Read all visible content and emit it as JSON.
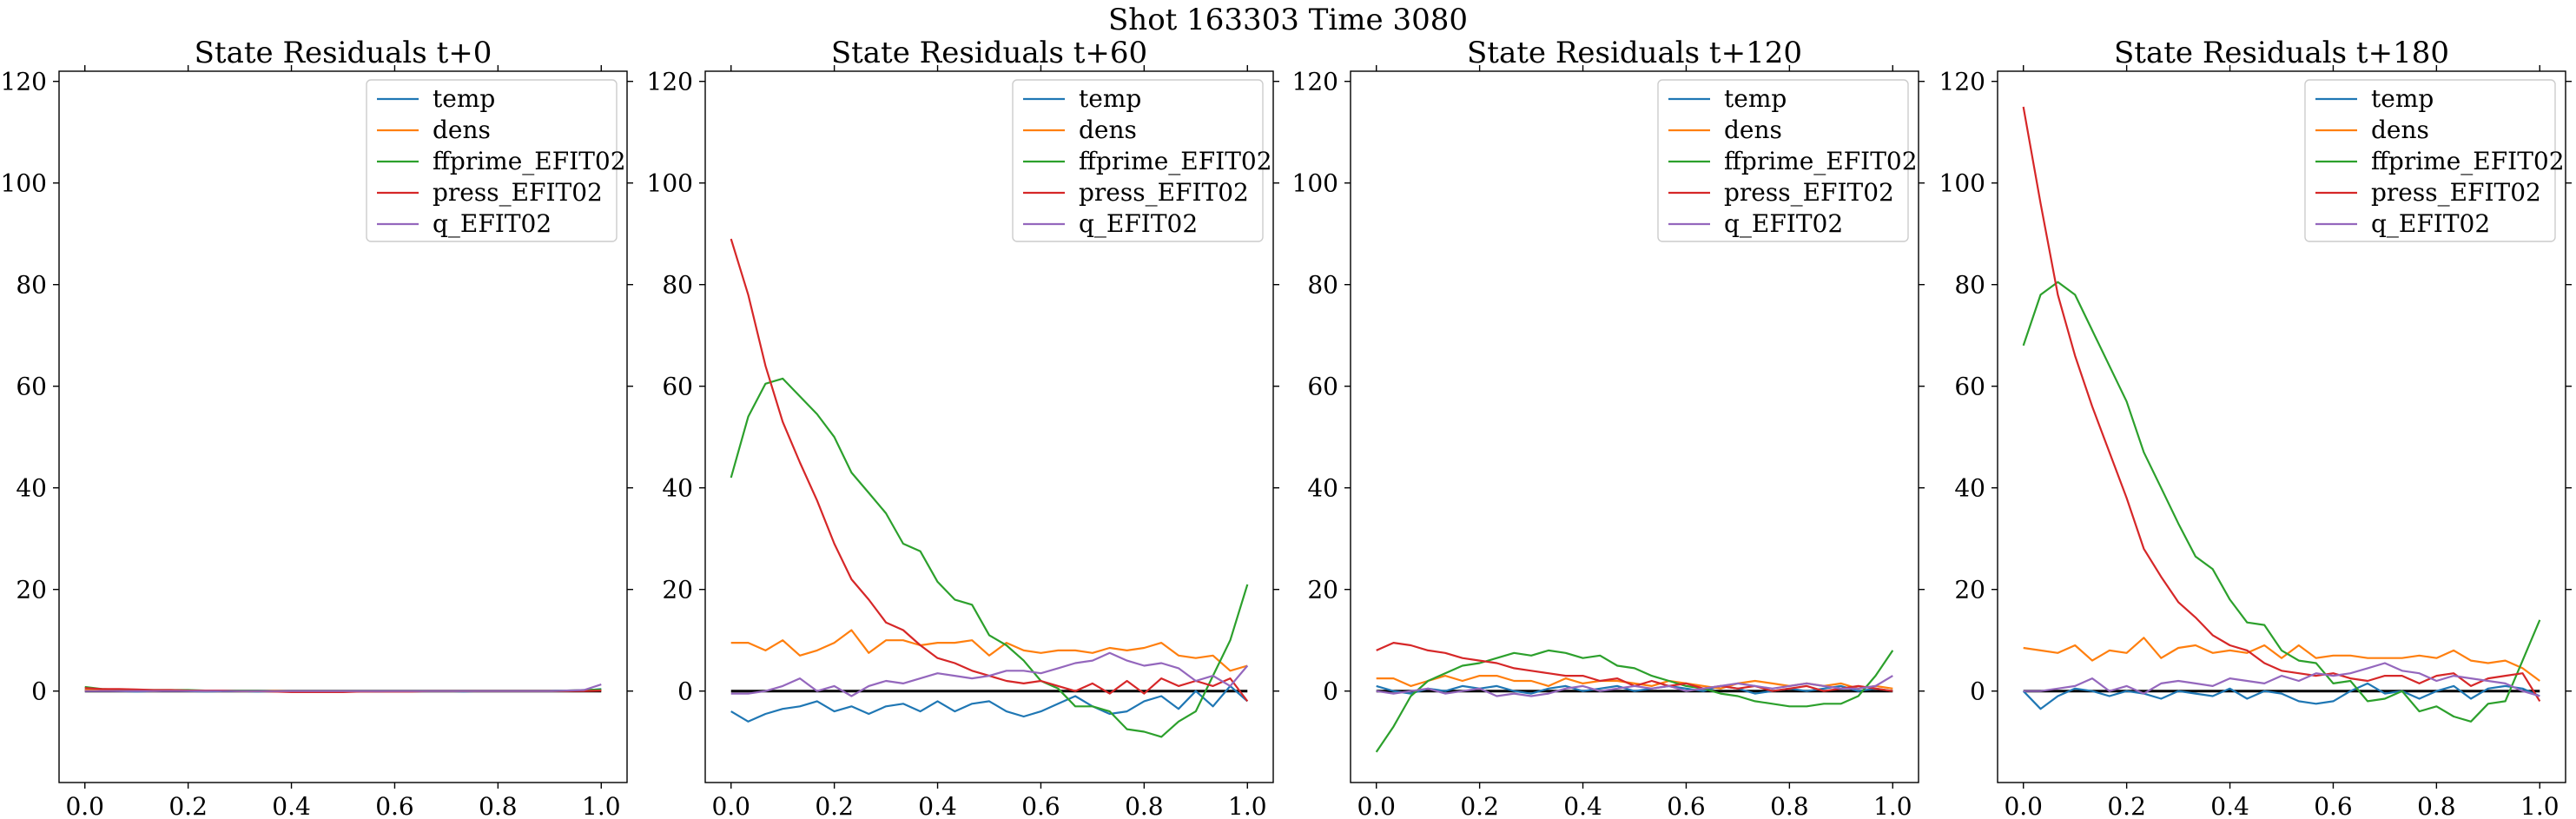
{
  "figure": {
    "title": "Shot 163303   Time 3080"
  },
  "colors": {
    "temp": "#1f77b4",
    "dens": "#ff7f0e",
    "ffprime_EFIT02": "#2ca02c",
    "press_EFIT02": "#d62728",
    "q_EFIT02": "#9467bd",
    "zero_line": "#000000"
  },
  "chart_data": [
    {
      "type": "line",
      "title": "State Residuals t+0",
      "xlabel": "",
      "ylabel": "",
      "xlim": [
        -0.05,
        1.05
      ],
      "ylim": [
        -18,
        122
      ],
      "xticks": [
        0.0,
        0.2,
        0.4,
        0.6,
        0.8,
        1.0
      ],
      "xtick_labels": [
        "0.0",
        "0.2",
        "0.4",
        "0.6",
        "0.8",
        "1.0"
      ],
      "yticks": [
        0,
        20,
        40,
        60,
        80,
        100,
        120
      ],
      "ytick_labels": [
        "0",
        "20",
        "40",
        "60",
        "80",
        "100",
        "120"
      ],
      "legend": "top-right",
      "zero_line": true,
      "x": [
        0.0,
        0.0333,
        0.0667,
        0.1,
        0.1333,
        0.1667,
        0.2,
        0.2333,
        0.2667,
        0.3,
        0.3333,
        0.3667,
        0.4,
        0.4333,
        0.4667,
        0.5,
        0.5333,
        0.5667,
        0.6,
        0.6333,
        0.6667,
        0.7,
        0.7333,
        0.7667,
        0.8,
        0.8333,
        0.8667,
        0.9,
        0.9333,
        0.9667,
        1.0
      ],
      "series": [
        {
          "name": "temp",
          "values": [
            0.3,
            0.1,
            0.0,
            -0.1,
            0.0,
            0.1,
            0.0,
            -0.1,
            0.0,
            0.0,
            -0.1,
            0.0,
            0.0,
            -0.1,
            -0.1,
            0.0,
            0.0,
            -0.1,
            0.0,
            0.0,
            0.0,
            0.0,
            -0.1,
            0.0,
            0.0,
            0.0,
            0.0,
            0.0,
            0.1,
            0.1,
            0.4
          ]
        },
        {
          "name": "dens",
          "values": [
            0.2,
            0.1,
            0.2,
            0.1,
            0.0,
            0.1,
            0.1,
            0.0,
            0.1,
            0.0,
            0.0,
            0.1,
            0.0,
            0.0,
            0.0,
            0.0,
            0.0,
            0.0,
            0.0,
            0.0,
            0.0,
            0.0,
            0.0,
            0.0,
            0.0,
            0.0,
            0.0,
            0.0,
            0.0,
            0.1,
            0.2
          ]
        },
        {
          "name": "ffprime_EFIT02",
          "values": [
            0.8,
            0.4,
            0.3,
            0.2,
            0.2,
            0.2,
            0.2,
            0.1,
            0.1,
            0.1,
            0.1,
            0.0,
            0.0,
            0.0,
            0.0,
            0.0,
            0.0,
            0.0,
            0.0,
            0.0,
            0.0,
            0.0,
            0.0,
            0.0,
            0.0,
            0.0,
            0.0,
            0.0,
            0.1,
            0.2,
            0.3
          ]
        },
        {
          "name": "press_EFIT02",
          "values": [
            0.6,
            0.4,
            0.4,
            0.3,
            0.2,
            0.2,
            0.1,
            0.1,
            0.1,
            0.0,
            0.0,
            -0.1,
            -0.2,
            -0.2,
            -0.2,
            -0.2,
            -0.1,
            -0.1,
            -0.1,
            -0.1,
            0.0,
            0.0,
            0.0,
            0.0,
            0.0,
            0.0,
            0.0,
            0.0,
            0.0,
            0.0,
            0.1
          ]
        },
        {
          "name": "q_EFIT02",
          "values": [
            0.0,
            0.0,
            0.0,
            0.0,
            0.0,
            0.0,
            0.0,
            0.0,
            0.0,
            0.0,
            0.0,
            0.0,
            0.0,
            0.0,
            0.0,
            0.0,
            0.0,
            0.0,
            0.0,
            0.0,
            0.0,
            0.0,
            0.0,
            0.0,
            0.0,
            0.0,
            0.0,
            0.0,
            0.1,
            0.2,
            1.3
          ]
        }
      ]
    },
    {
      "type": "line",
      "title": "State Residuals t+60",
      "xlabel": "",
      "ylabel": "",
      "xlim": [
        -0.05,
        1.05
      ],
      "ylim": [
        -18,
        122
      ],
      "xticks": [
        0.0,
        0.2,
        0.4,
        0.6,
        0.8,
        1.0
      ],
      "xtick_labels": [
        "0.0",
        "0.2",
        "0.4",
        "0.6",
        "0.8",
        "1.0"
      ],
      "yticks": [
        0,
        20,
        40,
        60,
        80,
        100,
        120
      ],
      "ytick_labels": [
        "0",
        "20",
        "40",
        "60",
        "80",
        "100",
        "120"
      ],
      "legend": "top-right",
      "zero_line": true,
      "x": [
        0.0,
        0.0333,
        0.0667,
        0.1,
        0.1333,
        0.1667,
        0.2,
        0.2333,
        0.2667,
        0.3,
        0.3333,
        0.3667,
        0.4,
        0.4333,
        0.4667,
        0.5,
        0.5333,
        0.5667,
        0.6,
        0.6333,
        0.6667,
        0.7,
        0.7333,
        0.7667,
        0.8,
        0.8333,
        0.8667,
        0.9,
        0.9333,
        0.9667,
        1.0
      ],
      "series": [
        {
          "name": "temp",
          "values": [
            -4,
            -6,
            -4.5,
            -3.5,
            -3,
            -2,
            -4,
            -3,
            -4.5,
            -3,
            -2.5,
            -4,
            -2,
            -4,
            -2.5,
            -2,
            -4,
            -5,
            -4,
            -2.5,
            -1,
            -3,
            -4.5,
            -4,
            -2,
            -1,
            -3.5,
            0,
            -3,
            1,
            -2
          ]
        },
        {
          "name": "dens",
          "values": [
            9.5,
            9.5,
            8,
            10,
            7,
            8,
            9.5,
            12,
            7.5,
            10,
            10,
            9,
            9.5,
            9.5,
            10,
            7,
            9.5,
            8,
            7.5,
            8,
            8,
            7.5,
            8.5,
            8,
            8.5,
            9.5,
            7,
            6.5,
            7,
            4,
            5
          ]
        },
        {
          "name": "ffprime_EFIT02",
          "values": [
            42,
            54,
            60.5,
            61.5,
            58,
            54.5,
            50,
            43,
            39,
            35,
            29,
            27.5,
            21.5,
            18,
            17,
            11,
            9,
            6,
            2,
            0.5,
            -3,
            -3,
            -4,
            -7.5,
            -8,
            -9,
            -6,
            -4,
            3,
            10,
            21
          ]
        },
        {
          "name": "press_EFIT02",
          "values": [
            89,
            78,
            64,
            53,
            45,
            37.5,
            29,
            22,
            18,
            13.5,
            12,
            9,
            6.5,
            5.5,
            4,
            3,
            2,
            1.5,
            2,
            1,
            0,
            1.5,
            -0.5,
            2,
            -0.5,
            2.5,
            1,
            2,
            1,
            2.5,
            -2
          ]
        },
        {
          "name": "q_EFIT02",
          "values": [
            -0.5,
            -0.5,
            0,
            1,
            2.5,
            0,
            1,
            -1,
            1,
            2,
            1.5,
            2.5,
            3.5,
            3,
            2.5,
            3,
            4,
            4,
            3.5,
            4.5,
            5.5,
            6,
            7.5,
            6,
            5,
            5.5,
            4.5,
            2,
            3,
            1,
            5
          ]
        }
      ]
    },
    {
      "type": "line",
      "title": "State Residuals t+120",
      "xlabel": "",
      "ylabel": "",
      "xlim": [
        -0.05,
        1.05
      ],
      "ylim": [
        -18,
        122
      ],
      "xticks": [
        0.0,
        0.2,
        0.4,
        0.6,
        0.8,
        1.0
      ],
      "xtick_labels": [
        "0.0",
        "0.2",
        "0.4",
        "0.6",
        "0.8",
        "1.0"
      ],
      "yticks": [
        0,
        20,
        40,
        60,
        80,
        100,
        120
      ],
      "ytick_labels": [
        "0",
        "20",
        "40",
        "60",
        "80",
        "100",
        "120"
      ],
      "legend": "top-right",
      "zero_line": true,
      "x": [
        0.0,
        0.0333,
        0.0667,
        0.1,
        0.1333,
        0.1667,
        0.2,
        0.2333,
        0.2667,
        0.3,
        0.3333,
        0.3667,
        0.4,
        0.4333,
        0.4667,
        0.5,
        0.5333,
        0.5667,
        0.6,
        0.6333,
        0.6667,
        0.7,
        0.7333,
        0.7667,
        0.8,
        0.8333,
        0.8667,
        0.9,
        0.9333,
        0.9667,
        1.0
      ],
      "series": [
        {
          "name": "temp",
          "values": [
            1,
            0,
            -0.5,
            0.5,
            0,
            1,
            0.5,
            1,
            0,
            -0.5,
            0.5,
            1,
            0,
            0.5,
            1,
            0,
            0.5,
            1,
            0.5,
            0,
            1,
            0.5,
            -0.5,
            0,
            0.5,
            0,
            0.5,
            1,
            0,
            0.5,
            0
          ]
        },
        {
          "name": "dens",
          "values": [
            2.5,
            2.5,
            1,
            2,
            3,
            2,
            3,
            3,
            2,
            2,
            1,
            2.5,
            1.5,
            2,
            2,
            1.5,
            1,
            2,
            1.5,
            1,
            0.5,
            1.5,
            2,
            1.5,
            1,
            1.5,
            1,
            1.5,
            0.5,
            1,
            0.5
          ]
        },
        {
          "name": "ffprime_EFIT02",
          "values": [
            -12,
            -7,
            -1,
            2,
            3.5,
            5,
            5.5,
            6.5,
            7.5,
            7,
            8,
            7.5,
            6.5,
            7,
            5,
            4.5,
            3,
            2,
            1,
            0.5,
            -0.5,
            -1,
            -2,
            -2.5,
            -3,
            -3,
            -2.5,
            -2.5,
            -1,
            3,
            8
          ]
        },
        {
          "name": "press_EFIT02",
          "values": [
            8,
            9.5,
            9,
            8,
            7.5,
            6.5,
            6,
            5.5,
            4.5,
            4,
            3.5,
            3,
            3,
            2,
            2.5,
            1,
            2,
            1,
            1.5,
            0.5,
            1,
            0.5,
            1,
            0,
            0.5,
            1,
            0,
            0.5,
            1,
            0.5,
            0
          ]
        },
        {
          "name": "q_EFIT02",
          "values": [
            0,
            -0.5,
            0,
            0.5,
            -0.5,
            0,
            0.5,
            -1,
            -0.5,
            -1,
            -0.5,
            0.5,
            1,
            0,
            0.5,
            1,
            0.5,
            1,
            0,
            0.5,
            1,
            1.5,
            1,
            0.5,
            1,
            1.5,
            1,
            0.5,
            0.5,
            1,
            3
          ]
        }
      ]
    },
    {
      "type": "line",
      "title": "State Residuals t+180",
      "xlabel": "",
      "ylabel": "",
      "xlim": [
        -0.05,
        1.05
      ],
      "ylim": [
        -18,
        122
      ],
      "xticks": [
        0.0,
        0.2,
        0.4,
        0.6,
        0.8,
        1.0
      ],
      "xtick_labels": [
        "0.0",
        "0.2",
        "0.4",
        "0.6",
        "0.8",
        "1.0"
      ],
      "yticks": [
        0,
        20,
        40,
        60,
        80,
        100,
        120
      ],
      "ytick_labels": [
        "0",
        "20",
        "40",
        "60",
        "80",
        "100",
        "120"
      ],
      "legend": "top-right",
      "zero_line": true,
      "x": [
        0.0,
        0.0333,
        0.0667,
        0.1,
        0.1333,
        0.1667,
        0.2,
        0.2333,
        0.2667,
        0.3,
        0.3333,
        0.3667,
        0.4,
        0.4333,
        0.4667,
        0.5,
        0.5333,
        0.5667,
        0.6,
        0.6333,
        0.6667,
        0.7,
        0.7333,
        0.7667,
        0.8,
        0.8333,
        0.8667,
        0.9,
        0.9333,
        0.9667,
        1.0
      ],
      "series": [
        {
          "name": "temp",
          "values": [
            0,
            -3.5,
            -1,
            0.5,
            0,
            -1,
            0,
            -0.5,
            -1.5,
            0,
            -0.5,
            -1,
            0.5,
            -1.5,
            0,
            -0.5,
            -2,
            -2.5,
            -2,
            0,
            1.5,
            -0.5,
            0,
            -1.5,
            0,
            1,
            -1.5,
            0.5,
            1,
            0.5,
            -1
          ]
        },
        {
          "name": "dens",
          "values": [
            8.5,
            8,
            7.5,
            9,
            6,
            8,
            7.5,
            10.5,
            6.5,
            8.5,
            9,
            7.5,
            8,
            7.5,
            9,
            6.5,
            9,
            6.5,
            7,
            7,
            6.5,
            6.5,
            6.5,
            7,
            6.5,
            8,
            6,
            5.5,
            6,
            4.5,
            2
          ]
        },
        {
          "name": "ffprime_EFIT02",
          "values": [
            68,
            78,
            80.5,
            78,
            71,
            64,
            57,
            47,
            40,
            33,
            26.5,
            24,
            18,
            13.5,
            13,
            8,
            6,
            5.5,
            1.5,
            2,
            -2,
            -1.5,
            0,
            -4,
            -3,
            -5,
            -6,
            -2.5,
            -2,
            6,
            14
          ]
        },
        {
          "name": "press_EFIT02",
          "values": [
            115,
            96,
            78,
            66,
            56,
            47,
            38,
            28,
            22.5,
            17.5,
            14.5,
            11,
            9,
            8,
            5.5,
            4,
            3.5,
            3,
            3.5,
            2.5,
            2,
            3,
            3,
            1.5,
            3,
            3.5,
            1,
            2.5,
            3,
            3.5,
            -2
          ]
        },
        {
          "name": "q_EFIT02",
          "values": [
            0,
            0,
            0.5,
            1,
            2.5,
            0,
            1,
            -0.5,
            1.5,
            2,
            1.5,
            1,
            2.5,
            2,
            1.5,
            3,
            2,
            3.5,
            3,
            3.5,
            4.5,
            5.5,
            4,
            3.5,
            2,
            3,
            2.5,
            2,
            1.5,
            0,
            -1
          ]
        }
      ]
    }
  ]
}
